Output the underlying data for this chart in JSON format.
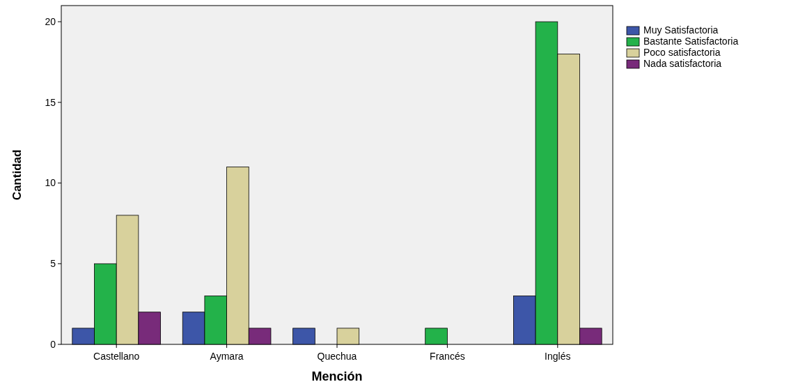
{
  "chart_data": {
    "type": "bar",
    "xlabel": "Mención",
    "ylabel": "Cantidad",
    "categories": [
      "Castellano",
      "Aymara",
      "Quechua",
      "Francés",
      "Inglés"
    ],
    "series": [
      {
        "name": "Muy Satisfactoria",
        "color": "#3d56a8",
        "values": [
          1,
          2,
          1,
          0,
          3
        ]
      },
      {
        "name": "Bastante Satisfactoria",
        "color": "#23b24a",
        "values": [
          5,
          3,
          0,
          1,
          20
        ]
      },
      {
        "name": "Poco satisfactoria",
        "color": "#d8d19c",
        "values": [
          8,
          11,
          1,
          0,
          18
        ]
      },
      {
        "name": "Nada satisfactoria",
        "color": "#782b7a",
        "values": [
          2,
          1,
          0,
          0,
          1
        ]
      }
    ],
    "ylim": [
      0,
      21
    ],
    "yticks": [
      0,
      5,
      10,
      15,
      20
    ],
    "grid": false,
    "legend": "top right"
  }
}
